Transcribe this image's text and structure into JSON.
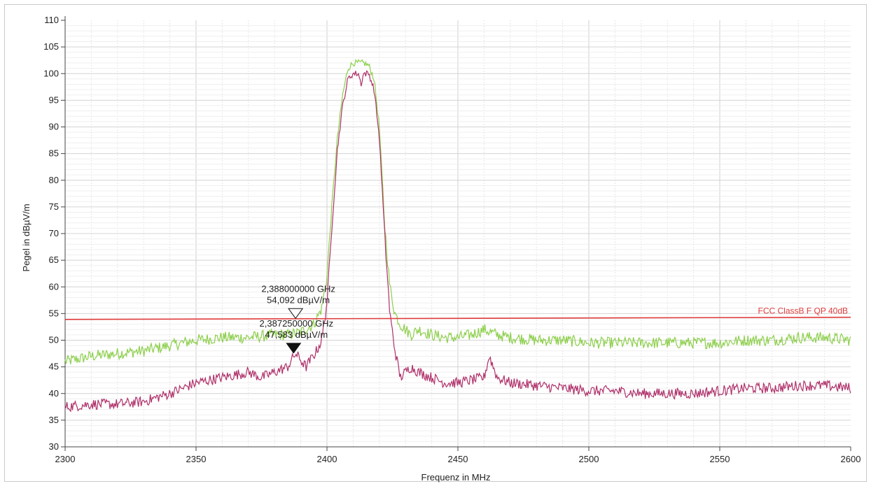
{
  "chart_data": {
    "type": "line",
    "xlabel": "Frequenz in MHz",
    "ylabel": "Pegel in dBµV/m",
    "xlim": [
      2300,
      2600
    ],
    "ylim": [
      30,
      110
    ],
    "x_ticks": [
      "2300",
      "2350",
      "2400",
      "2450",
      "2500",
      "2550",
      "2600"
    ],
    "y_ticks": [
      "30",
      "35",
      "40",
      "45",
      "50",
      "55",
      "60",
      "65",
      "70",
      "75",
      "80",
      "85",
      "90",
      "95",
      "100",
      "105",
      "110"
    ],
    "grid": true,
    "limit_line": {
      "label": "FCC ClassB F QP 40dB",
      "x": [
        2300,
        2600
      ],
      "y": [
        53.9,
        54.3
      ],
      "color": "#e03b3b"
    },
    "series": [
      {
        "color": "#8ccf4a",
        "x": [
          2300,
          2305,
          2310,
          2320,
          2330,
          2340,
          2350,
          2360,
          2370,
          2380,
          2385,
          2390,
          2395,
          2398,
          2400,
          2402,
          2404,
          2406,
          2408,
          2410,
          2412,
          2414,
          2416,
          2418,
          2420,
          2422,
          2424,
          2426,
          2428,
          2430,
          2432,
          2435,
          2440,
          2445,
          2450,
          2455,
          2460,
          2465,
          2470,
          2480,
          2490,
          2500,
          2510,
          2520,
          2530,
          2540,
          2550,
          2560,
          2570,
          2580,
          2590,
          2600
        ],
        "y": [
          46,
          46.5,
          47,
          47.5,
          48,
          49,
          50,
          50.5,
          50.5,
          51,
          51,
          51.5,
          53,
          56,
          62,
          76,
          88,
          96,
          101,
          102,
          102,
          102,
          101.5,
          99,
          90,
          72,
          60,
          55,
          53,
          52,
          51,
          52,
          51,
          50.5,
          50.5,
          51,
          52,
          51,
          50.5,
          50,
          50,
          49.5,
          49.5,
          49.5,
          49.5,
          49.5,
          49.5,
          50,
          50,
          50.5,
          50.5,
          50
        ]
      },
      {
        "color": "#b0306a",
        "x": [
          2300,
          2310,
          2320,
          2330,
          2340,
          2345,
          2350,
          2360,
          2370,
          2375,
          2380,
          2385,
          2388,
          2392,
          2396,
          2398,
          2400,
          2402,
          2404,
          2406,
          2408,
          2410,
          2412,
          2413,
          2414,
          2416,
          2418,
          2420,
          2422,
          2424,
          2426,
          2428,
          2430,
          2432,
          2435,
          2440,
          2445,
          2450,
          2455,
          2460,
          2462,
          2465,
          2470,
          2480,
          2490,
          2500,
          2510,
          2520,
          2530,
          2540,
          2550,
          2560,
          2570,
          2580,
          2590,
          2600
        ],
        "y": [
          37.5,
          38,
          38,
          38.5,
          40,
          41,
          42,
          43,
          44,
          43,
          44,
          45,
          47.5,
          45,
          48,
          50,
          57,
          72,
          86,
          94,
          99,
          100,
          100,
          98,
          100,
          100,
          97,
          88,
          70,
          55,
          48,
          43,
          44,
          45,
          44,
          43,
          42,
          42,
          42.5,
          43,
          47,
          43,
          42,
          41.5,
          41,
          40.5,
          40.5,
          40,
          40,
          40,
          40.5,
          41,
          41,
          41.5,
          41.5,
          41
        ]
      }
    ],
    "markers": [
      {
        "x": 2388.0,
        "y": 54.092,
        "style": "hollow-triangle",
        "label_freq": "2,388000000 GHz",
        "label_level": "54,092 dBµV/m"
      },
      {
        "x": 2387.25,
        "y": 47.583,
        "style": "filled-triangle",
        "label_freq": "2,387250000 GHz",
        "label_level": "47,583 dBµV/m"
      }
    ]
  }
}
